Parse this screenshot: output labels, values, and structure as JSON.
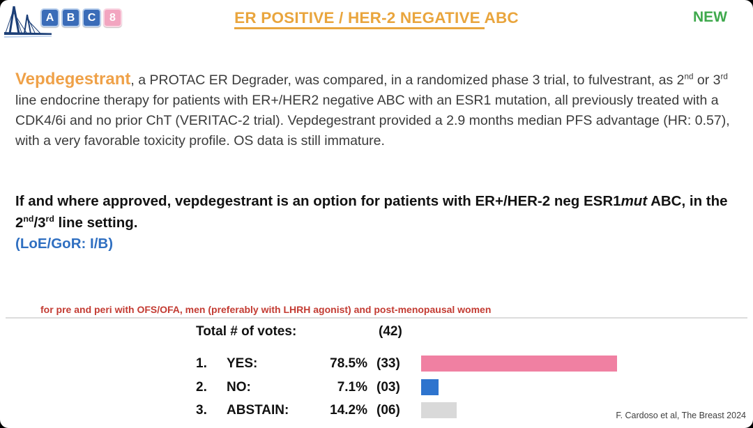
{
  "slide": {
    "logo": {
      "blocks": [
        "A",
        "B",
        "C",
        "8"
      ]
    },
    "title": {
      "underlined": "ER POSITIVE / HER-2 NEGATIVE ",
      "rest": "ABC"
    },
    "badge_new": "NEW",
    "paragraph": {
      "lead": "Vepdegestrant",
      "segments": [
        {
          "t": ", a PROTAC ER Degrader, was compared, in a randomized phase 3 trial, to fulvestrant, as 2"
        },
        {
          "t": "nd",
          "sup": true
        },
        {
          "t": " or 3"
        },
        {
          "t": "rd",
          "sup": true
        },
        {
          "t": " line endocrine therapy for patients with ER+/HER2 negative ABC with an ESR1 mutation, all previously treated with a CDK4/6i and no prior ChT (VERITAC-2 trial). Vepdegestrant provided a 2.9 months median PFS advantage (HR: 0.57), with a very favorable toxicity profile. OS data is still immature."
        }
      ]
    },
    "recommendation": {
      "segments": [
        {
          "t": "If and where approved, vepdegestrant is an option for patients with ER+/HER-2 neg ESR1"
        },
        {
          "t": "mut",
          "i": true
        },
        {
          "t": " ABC, in the 2"
        },
        {
          "t": "nd",
          "sup": true
        },
        {
          "t": "/3"
        },
        {
          "t": "rd",
          "sup": true
        },
        {
          "t": " line setting."
        }
      ],
      "loe": "(LoE/GoR: I/B)"
    },
    "population_note": "for pre and peri with OFS/OFA, men (preferably with LHRH agonist) and post-menopausal women",
    "votes": {
      "total_label": "Total # of votes:",
      "total_value": "(42)",
      "rows": [
        {
          "num": "1.",
          "label": "YES:",
          "pct": "78.5%",
          "count": "(33)",
          "value": 78.5,
          "color": "#f080a2"
        },
        {
          "num": "2.",
          "label": "NO:",
          "pct": "7.1%",
          "count": "(03)",
          "value": 7.1,
          "color": "#2e74ce"
        },
        {
          "num": "3.",
          "label": "ABSTAIN:",
          "pct": "14.2%",
          "count": "(06)",
          "value": 14.2,
          "color": "#d9d9d9"
        }
      ]
    },
    "citation": "F. Cardoso et al, The Breast 2024"
  },
  "chart_data": {
    "type": "bar",
    "orientation": "horizontal",
    "title": "Total # of votes: (42)",
    "categories": [
      "YES",
      "NO",
      "ABSTAIN"
    ],
    "values": [
      78.5,
      7.1,
      14.2
    ],
    "counts": [
      33,
      3,
      6
    ],
    "total_votes": 42,
    "xlim": [
      0,
      100
    ],
    "bar_colors": [
      "#f080a2",
      "#2e74ce",
      "#d9d9d9"
    ],
    "grid": false,
    "legend": false
  },
  "colors": {
    "title_orange": "#e9a53d",
    "lead_orange": "#efa148",
    "new_green": "#3fa94d",
    "loe_blue": "#2f6fc1",
    "note_red": "#c33b32",
    "bar_yes_pink": "#f080a2",
    "bar_no_blue": "#2e74ce",
    "bar_abstain_gray": "#d9d9d9",
    "logo_navy": "#1c3f77"
  }
}
